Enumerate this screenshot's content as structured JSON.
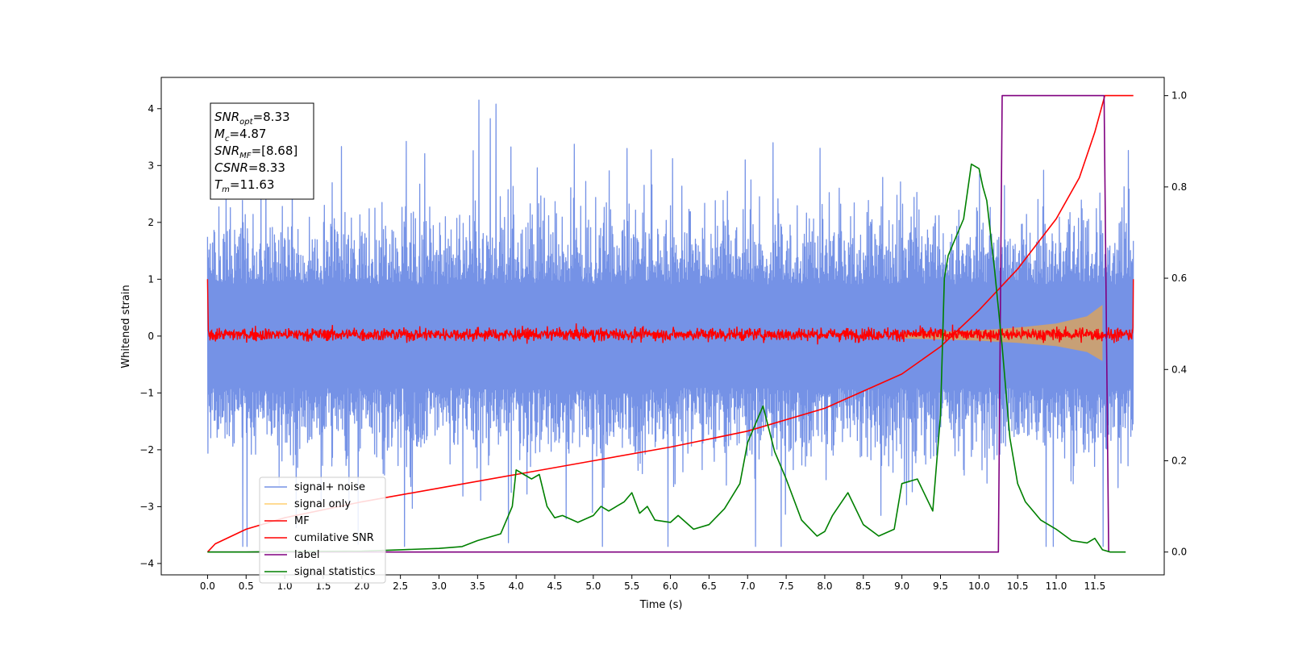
{
  "chart_data": {
    "type": "line",
    "xlabel": "Time (s)",
    "ylabel": "Whitened strain",
    "y2label": "",
    "xlim": [
      -0.6,
      12.4
    ],
    "ylim": [
      -4.2,
      4.55
    ],
    "y2lim": [
      -0.05,
      1.04
    ],
    "x_ticks": [
      "0.0",
      "0.5",
      "1.0",
      "1.5",
      "2.0",
      "2.5",
      "3.0",
      "3.5",
      "4.0",
      "4.5",
      "5.0",
      "5.5",
      "6.0",
      "6.5",
      "7.0",
      "7.5",
      "8.0",
      "8.5",
      "9.0",
      "9.5",
      "10.0",
      "10.5",
      "11.0",
      "11.5"
    ],
    "y_ticks": [
      "4",
      "3",
      "2",
      "1",
      "0",
      "−1",
      "−2",
      "−3",
      "−4"
    ],
    "y2_ticks": [
      "1.0",
      "0.8",
      "0.6",
      "0.4",
      "0.2",
      "0.0"
    ],
    "textbox": [
      {
        "sym": "SNR",
        "sub": "opt",
        "val": "=8.33"
      },
      {
        "sym": "M",
        "sub": "c",
        "val": "=4.87"
      },
      {
        "sym": "SNR",
        "sub": "MF",
        "val": "=[8.68]"
      },
      {
        "sym": "CSNR",
        "sub": "",
        "val": "=8.33"
      },
      {
        "sym": "T",
        "sub": "m",
        "val": "=11.63"
      }
    ],
    "legend": {
      "position": "lower left",
      "entries": [
        {
          "label": "signal+ noise",
          "color": "#7592e6"
        },
        {
          "label": "signal only",
          "color": "#ffcf70"
        },
        {
          "label": "MF",
          "color": "#ff0000"
        },
        {
          "label": "cumilative SNR",
          "color": "#ff0000"
        },
        {
          "label": "label",
          "color": "#800080"
        },
        {
          "label": "signal statistics",
          "color": "#008000"
        }
      ]
    },
    "series": [
      {
        "name": "signal+ noise",
        "axis": "left",
        "color": "#7592e6",
        "style": "dense noise trace",
        "x_range": [
          0,
          12.0
        ],
        "max_level": 4.15,
        "min_level": -3.7
      },
      {
        "name": "signal only",
        "axis": "left",
        "color": "#c8a076",
        "style": "chirp envelope",
        "envelope": {
          "x": [
            9.0,
            10.0,
            10.5,
            11.0,
            11.4,
            11.6
          ],
          "half_width": [
            0.05,
            0.1,
            0.15,
            0.22,
            0.35,
            0.55
          ]
        }
      },
      {
        "name": "MF",
        "axis": "left",
        "color": "#ff0000",
        "style": "dense noise trace",
        "x_range": [
          0,
          12.0
        ],
        "max_level": 0.32,
        "min_level": -0.18,
        "endpoint_value": 1.0
      },
      {
        "name": "cumilative SNR",
        "axis": "right",
        "color": "#ff0000",
        "x": [
          0,
          0.1,
          0.5,
          1.0,
          2.0,
          3.0,
          4.0,
          5.0,
          6.0,
          7.0,
          8.0,
          9.0,
          9.5,
          10.0,
          10.5,
          11.0,
          11.3,
          11.5,
          11.63,
          12.0
        ],
        "values": [
          0.0,
          0.018,
          0.05,
          0.075,
          0.11,
          0.14,
          0.17,
          0.2,
          0.23,
          0.265,
          0.315,
          0.39,
          0.45,
          0.53,
          0.62,
          0.73,
          0.82,
          0.92,
          1.0,
          1.0
        ]
      },
      {
        "name": "label",
        "axis": "right",
        "color": "#800080",
        "x": [
          0,
          10.25,
          10.3,
          11.62,
          11.68
        ],
        "values": [
          0,
          0,
          1,
          1,
          0
        ]
      },
      {
        "name": "signal statistics",
        "axis": "right",
        "color": "#008000",
        "x": [
          0,
          0.5,
          1.0,
          2.0,
          2.5,
          3.0,
          3.3,
          3.5,
          3.8,
          3.95,
          4.0,
          4.1,
          4.2,
          4.3,
          4.4,
          4.5,
          4.6,
          4.8,
          5.0,
          5.1,
          5.2,
          5.3,
          5.4,
          5.5,
          5.6,
          5.7,
          5.8,
          6.0,
          6.1,
          6.3,
          6.5,
          6.7,
          6.9,
          7.0,
          7.2,
          7.35,
          7.5,
          7.7,
          7.9,
          8.0,
          8.1,
          8.3,
          8.5,
          8.7,
          8.9,
          9.0,
          9.2,
          9.4,
          9.5,
          9.55,
          9.6,
          9.8,
          9.9,
          10.0,
          10.05,
          10.1,
          10.2,
          10.3,
          10.4,
          10.5,
          10.6,
          10.8,
          11.0,
          11.2,
          11.4,
          11.5,
          11.6,
          11.7,
          11.9
        ],
        "values": [
          0.0,
          0.0,
          0.001,
          0.002,
          0.005,
          0.008,
          0.012,
          0.025,
          0.04,
          0.1,
          0.18,
          0.17,
          0.16,
          0.17,
          0.1,
          0.075,
          0.08,
          0.065,
          0.08,
          0.1,
          0.09,
          0.1,
          0.11,
          0.13,
          0.085,
          0.1,
          0.07,
          0.065,
          0.08,
          0.05,
          0.06,
          0.095,
          0.15,
          0.24,
          0.32,
          0.22,
          0.16,
          0.07,
          0.035,
          0.045,
          0.08,
          0.13,
          0.06,
          0.035,
          0.05,
          0.15,
          0.16,
          0.09,
          0.3,
          0.6,
          0.65,
          0.73,
          0.85,
          0.84,
          0.8,
          0.77,
          0.62,
          0.45,
          0.25,
          0.15,
          0.11,
          0.07,
          0.05,
          0.025,
          0.02,
          0.03,
          0.005,
          0.0,
          0.0
        ]
      }
    ]
  }
}
